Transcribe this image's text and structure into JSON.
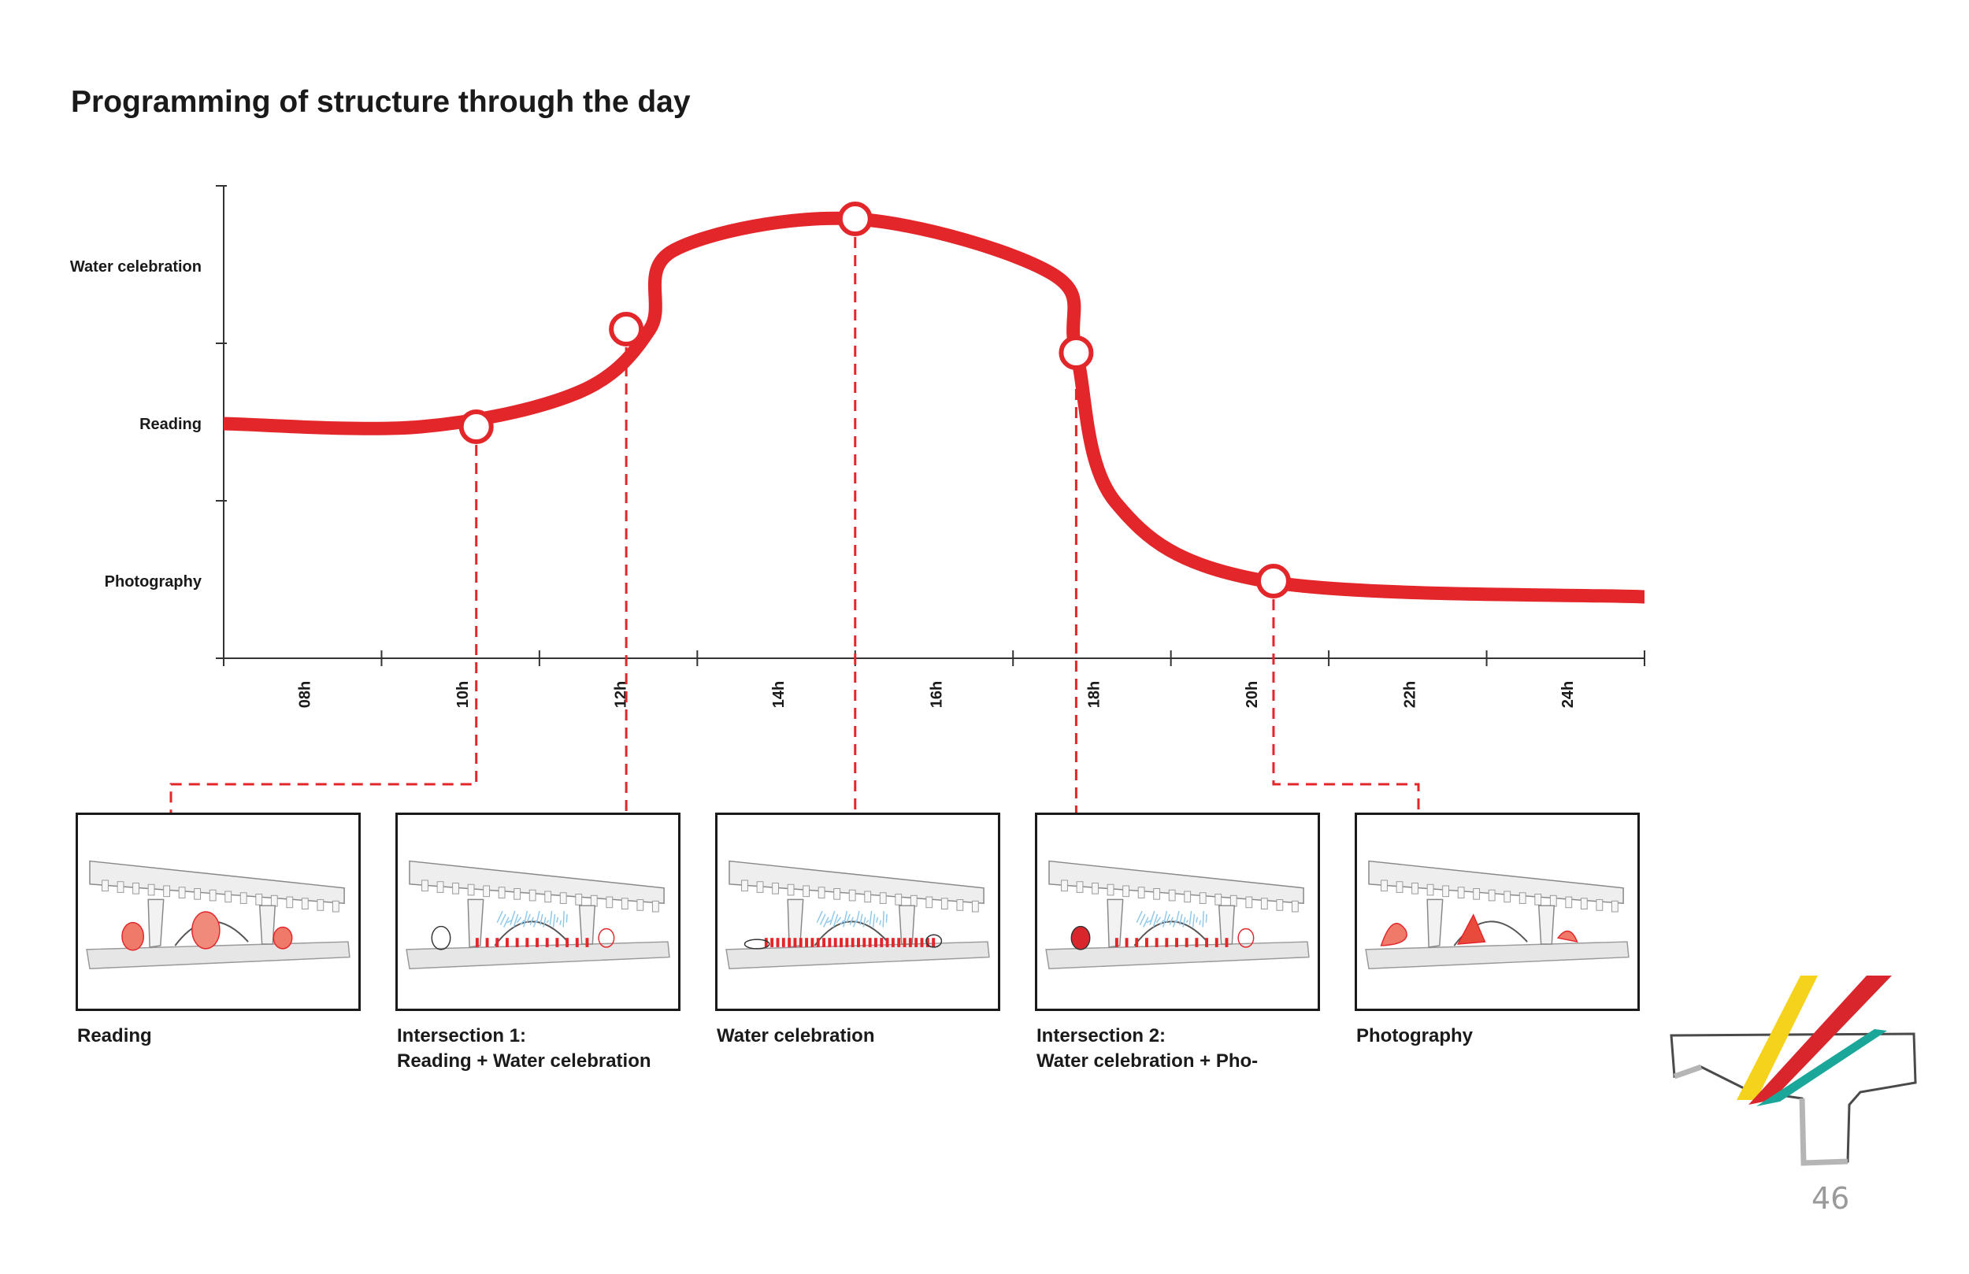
{
  "title": "Programming of structure through the day",
  "page_number": "46",
  "accent_color": "#e3262a",
  "chart": {
    "y_levels": [
      "Photography",
      "Reading",
      "Water celebration"
    ],
    "x_ticks": [
      "08h",
      "10h",
      "12h",
      "14h",
      "16h",
      "18h",
      "20h",
      "22h",
      "24h"
    ],
    "curve": [
      {
        "hour": 7,
        "level": 1.0
      },
      {
        "hour": 9.5,
        "level": 0.98
      },
      {
        "hour": 11.5,
        "level": 1.2
      },
      {
        "hour": 12.4,
        "level": 1.6
      },
      {
        "hour": 12.7,
        "level": 2.1
      },
      {
        "hour": 15,
        "level": 2.3
      },
      {
        "hour": 17.5,
        "level": 1.95
      },
      {
        "hour": 17.8,
        "level": 1.45
      },
      {
        "hour": 18.3,
        "level": 0.5
      },
      {
        "hour": 20.2,
        "level": 0.0
      },
      {
        "hour": 25,
        "level": -0.1
      }
    ],
    "markers": [
      {
        "name": "reading",
        "hour": 10.2,
        "level": 0.98
      },
      {
        "name": "intersection-1",
        "hour": 12.1,
        "level": 1.6
      },
      {
        "name": "water-celebration",
        "hour": 15.0,
        "level": 2.3
      },
      {
        "name": "intersection-2",
        "hour": 17.8,
        "level": 1.45
      },
      {
        "name": "photography",
        "hour": 20.3,
        "level": 0.0
      }
    ]
  },
  "panels": [
    {
      "caption": [
        "Reading"
      ]
    },
    {
      "caption": [
        "Intersection 1:",
        "Reading + Water celebration"
      ]
    },
    {
      "caption": [
        "Water celebration"
      ]
    },
    {
      "caption": [
        "Intersection 2:",
        "Water celebration + Pho-"
      ]
    },
    {
      "caption": [
        "Photography"
      ]
    }
  ],
  "logo_colors": {
    "yellow": "#f5d21b",
    "red": "#d9262c",
    "teal": "#1aa79a",
    "gray": "#b5b5b5"
  }
}
